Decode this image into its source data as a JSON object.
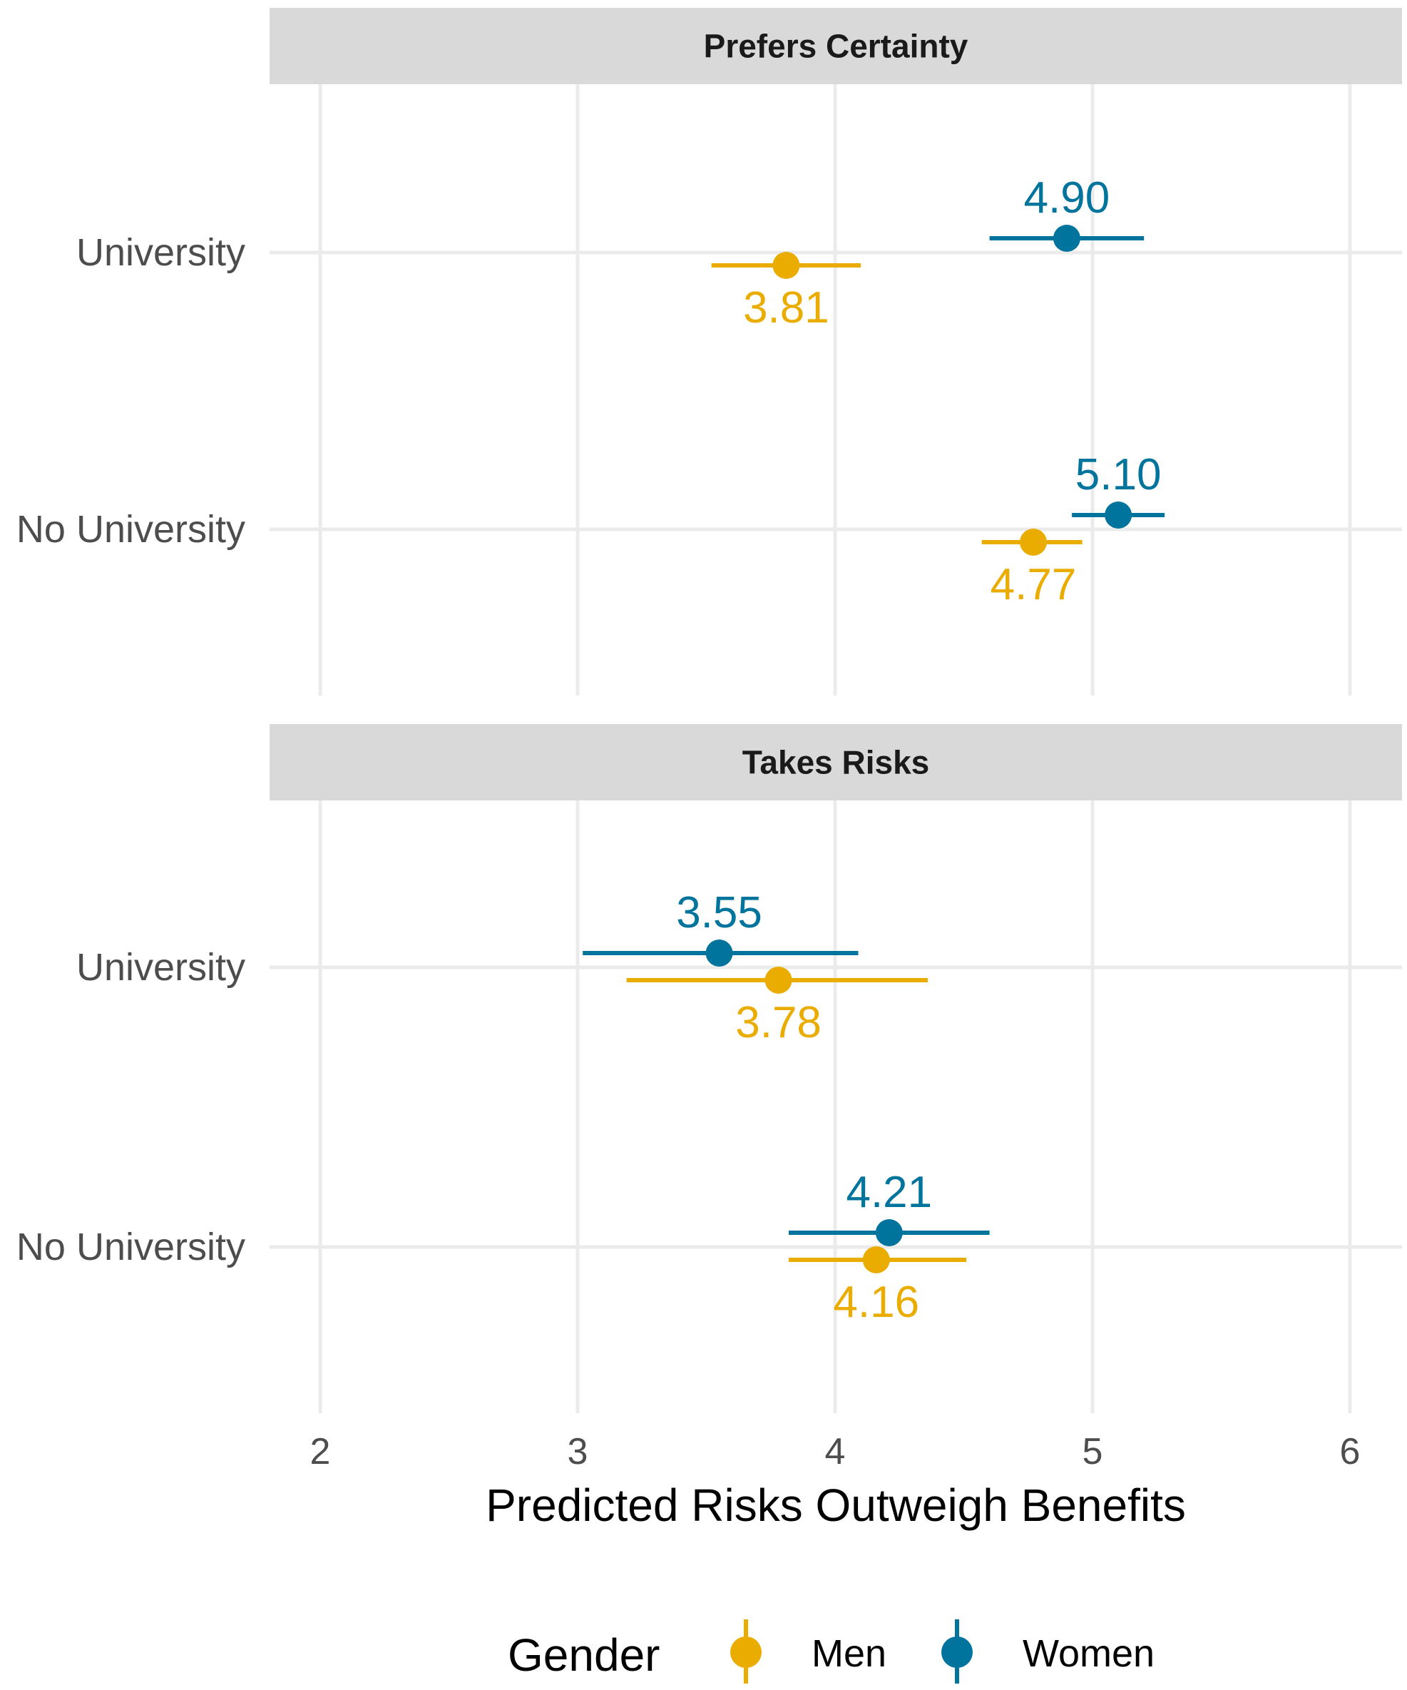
{
  "chart_data": {
    "type": "dot-errorbar",
    "xlabel": "Predicted Risks Outweigh Benefits",
    "xlim": [
      1.8,
      6.2
    ],
    "xticks": [
      "2",
      "3",
      "4",
      "5",
      "6"
    ],
    "grid": true,
    "legend": {
      "title": "Gender",
      "placement": "bottom",
      "entries": [
        "Men",
        "Women"
      ]
    },
    "colors": {
      "Men": "#EBAC00",
      "Women": "#00749C"
    },
    "categories": [
      "University",
      "No University"
    ],
    "panels": [
      {
        "title": "Prefers Certainty",
        "series": [
          {
            "name": "Men",
            "values": [
              3.81,
              4.77
            ],
            "lower": [
              3.52,
              4.57
            ],
            "upper": [
              4.1,
              4.96
            ],
            "labels": [
              "3.81",
              "4.77"
            ]
          },
          {
            "name": "Women",
            "values": [
              4.9,
              5.1
            ],
            "lower": [
              4.6,
              4.92
            ],
            "upper": [
              5.2,
              5.28
            ],
            "labels": [
              "4.90",
              "5.10"
            ]
          }
        ]
      },
      {
        "title": "Takes Risks",
        "series": [
          {
            "name": "Men",
            "values": [
              3.78,
              4.16
            ],
            "lower": [
              3.19,
              3.82
            ],
            "upper": [
              4.36,
              4.51
            ],
            "labels": [
              "3.78",
              "4.16"
            ]
          },
          {
            "name": "Women",
            "values": [
              3.55,
              4.21
            ],
            "lower": [
              3.02,
              3.82
            ],
            "upper": [
              4.09,
              4.6
            ],
            "labels": [
              "3.55",
              "4.21"
            ]
          }
        ]
      }
    ]
  }
}
